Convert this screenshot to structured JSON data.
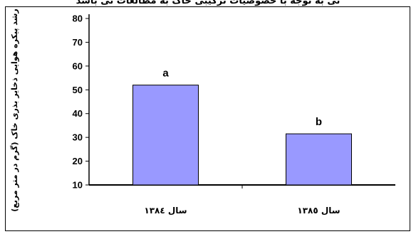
{
  "caption": "نی به توجه با حصوصیات ترکیبی خاک به مطالعات نی باشد",
  "chart_data": {
    "type": "bar",
    "categories": [
      "سال ۱۳۸٤",
      "سال ۱۳۸٥"
    ],
    "values": [
      52,
      31.5
    ],
    "data_labels": [
      "a",
      "b"
    ],
    "title": "",
    "xlabel": "",
    "ylabel": "رشد پیکره هوایی ذخایر بذری خاک (گرم در متر مربع)",
    "ylim": [
      10,
      80
    ],
    "yticks": [
      10,
      20,
      30,
      40,
      50,
      60,
      70,
      80
    ],
    "grid": false,
    "bar_color": "#9999ff",
    "bar_edge_color": "#000000"
  }
}
